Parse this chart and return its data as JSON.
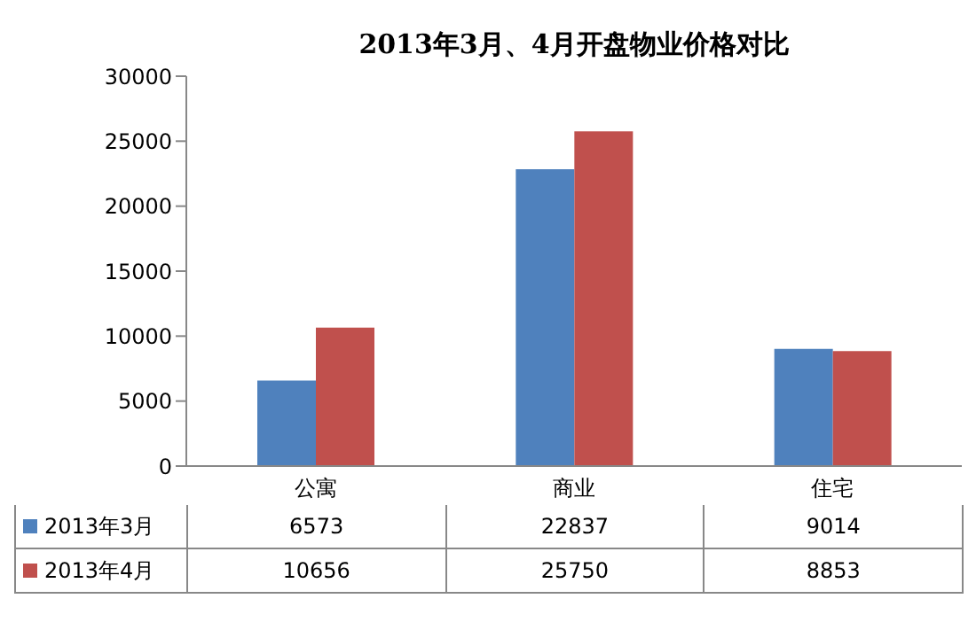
{
  "chart_data": {
    "type": "bar",
    "title": "2013年3月、4月开盘物业价格对比",
    "categories": [
      "公寓",
      "商业",
      "住宅"
    ],
    "series": [
      {
        "name": "2013年3月",
        "color": "#4f81bd",
        "values": [
          6573,
          22837,
          9014
        ]
      },
      {
        "name": "2013年4月",
        "color": "#c0504d",
        "values": [
          10656,
          25750,
          8853
        ]
      }
    ],
    "ylim": [
      0,
      30000
    ],
    "yticks": [
      0,
      5000,
      10000,
      15000,
      20000,
      25000,
      30000
    ],
    "grid": false,
    "legend": "bottom",
    "data_labels": true
  }
}
